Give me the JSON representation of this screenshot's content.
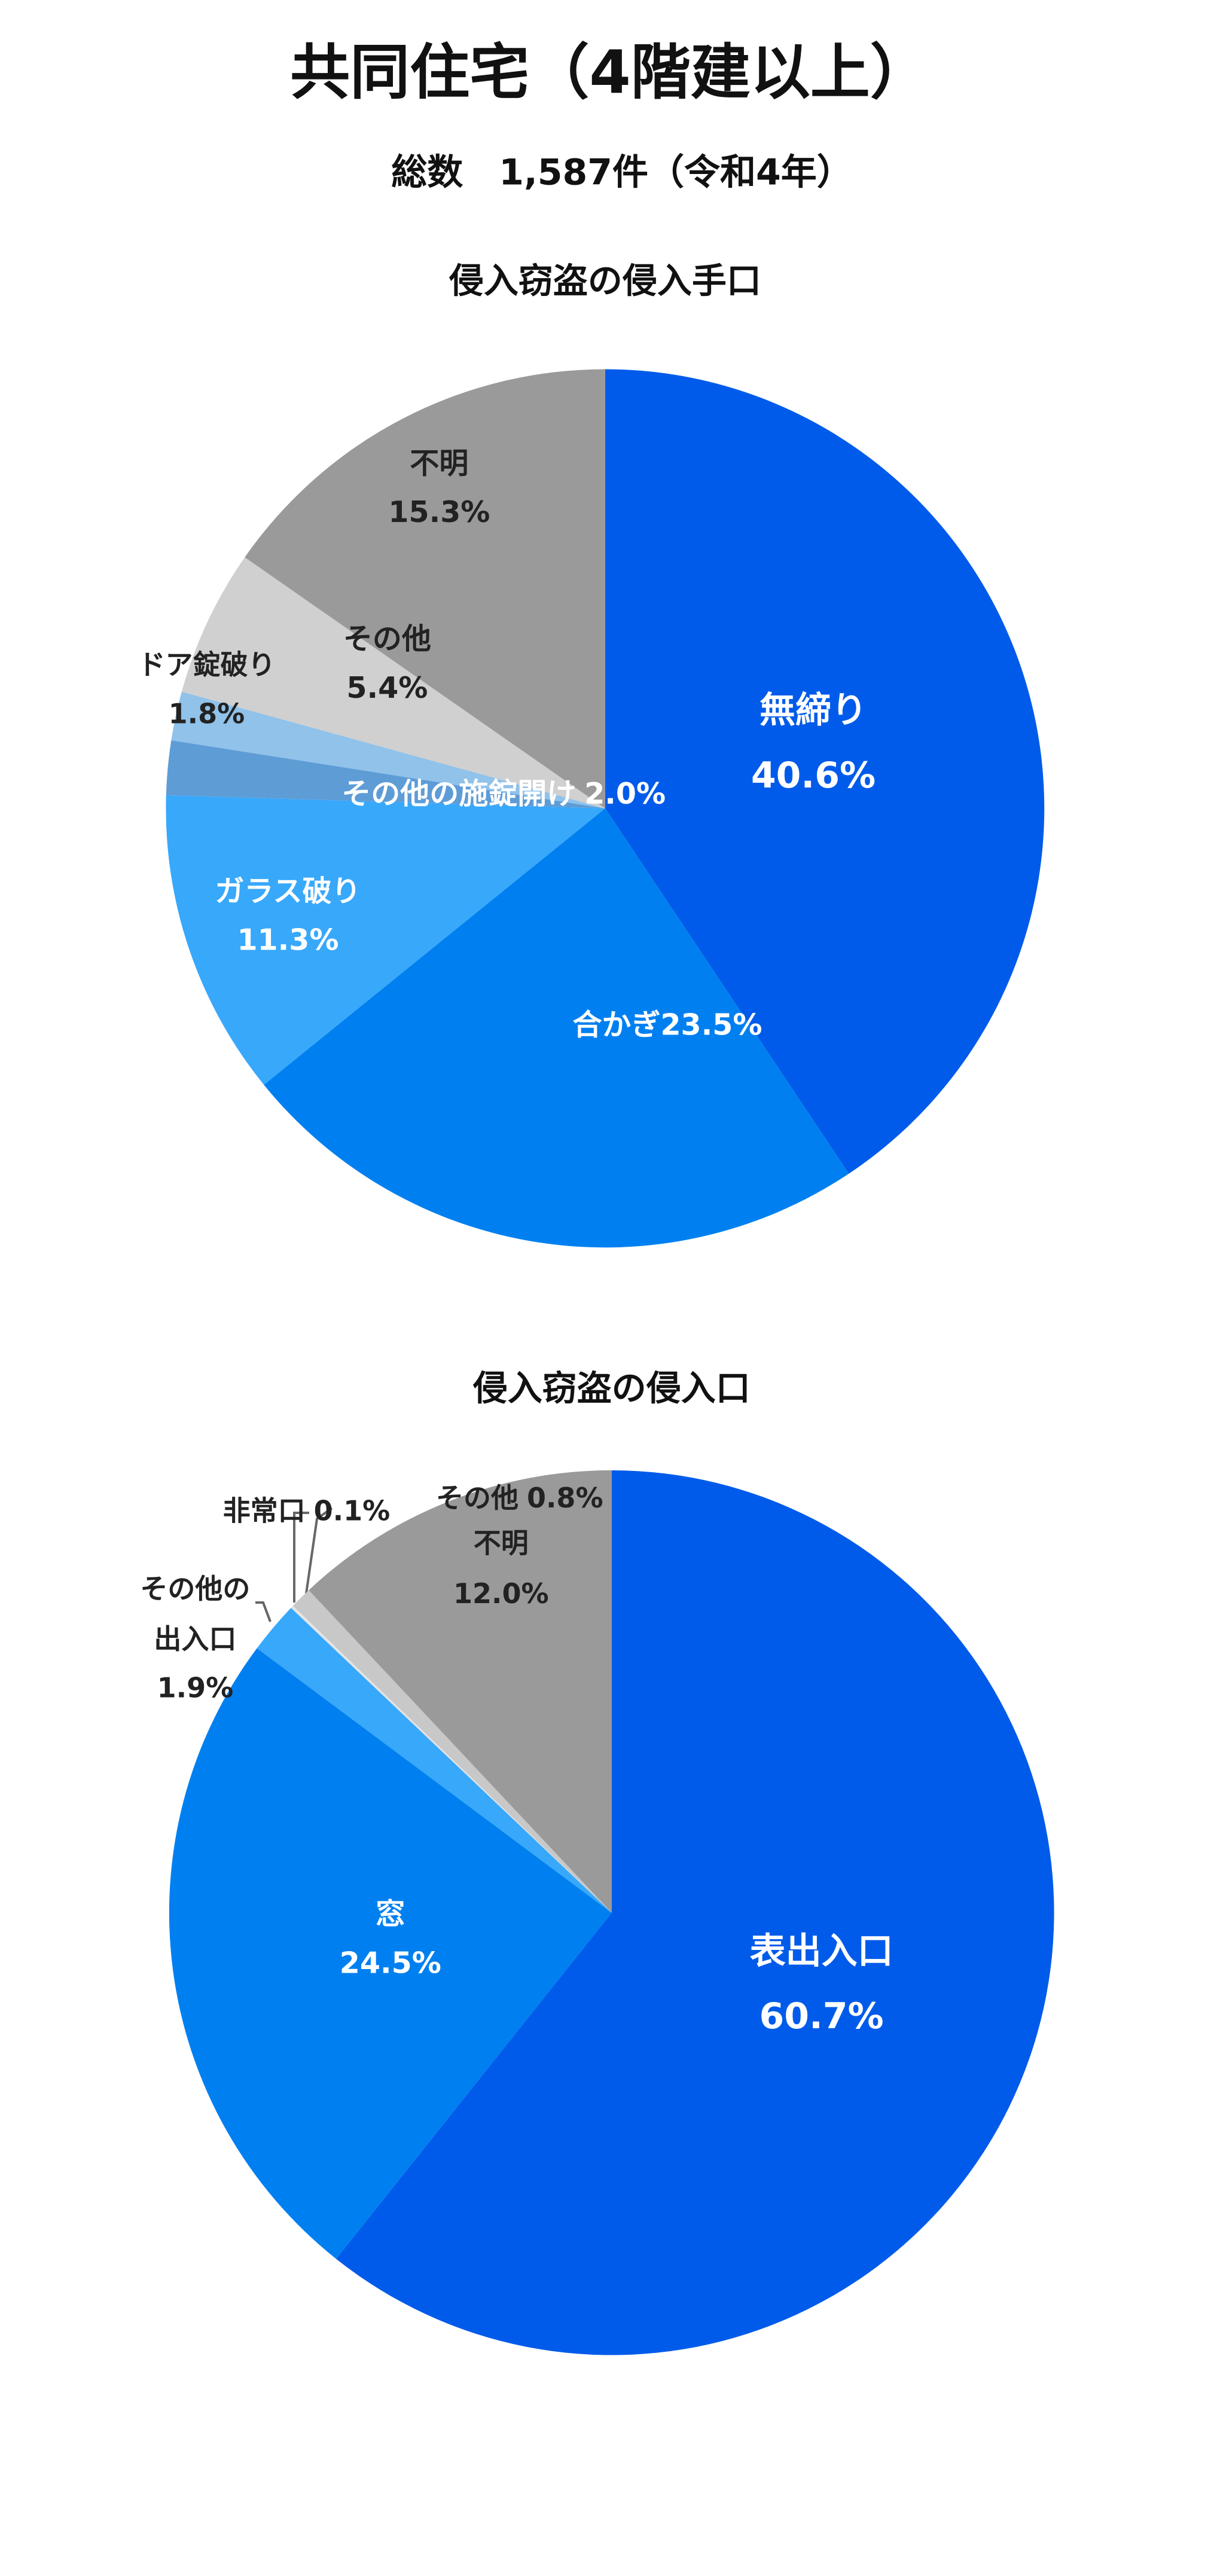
{
  "header": {
    "title": "共同住宅（4階建以上）",
    "subtitle": "総数　1,587件（令和4年）"
  },
  "chart_data": [
    {
      "type": "pie",
      "title": "侵入窃盗の侵入手口",
      "categories": [
        "無締り",
        "合かぎ",
        "ガラス破り",
        "その他の施錠開け",
        "ドア錠破り",
        "その他",
        "不明"
      ],
      "values": [
        40.6,
        23.5,
        11.3,
        2.0,
        1.8,
        5.4,
        15.3
      ],
      "value_labels": [
        "40.6%",
        "23.5%",
        "11.3%",
        "2.0%",
        "1.8%",
        "5.4%",
        "15.3%"
      ],
      "colors": [
        "#005bea",
        "#0080f0",
        "#38a8fb",
        "#5e9cd6",
        "#90c2ea",
        "#d0d0d0",
        "#9a9a9a"
      ]
    },
    {
      "type": "pie",
      "title": "侵入窃盗の侵入口",
      "categories": [
        "表出入口",
        "窓",
        "その他の出入口",
        "非常口",
        "その他",
        "不明"
      ],
      "values": [
        60.7,
        24.5,
        1.9,
        0.1,
        0.8,
        12.0
      ],
      "value_labels": [
        "60.7%",
        "24.5%",
        "1.9%",
        "0.1%",
        "0.8%",
        "12.0%"
      ],
      "colors": [
        "#005bea",
        "#0080f0",
        "#38a8fb",
        "#e4e4e4",
        "#c8c8c8",
        "#9a9a9a"
      ]
    }
  ]
}
